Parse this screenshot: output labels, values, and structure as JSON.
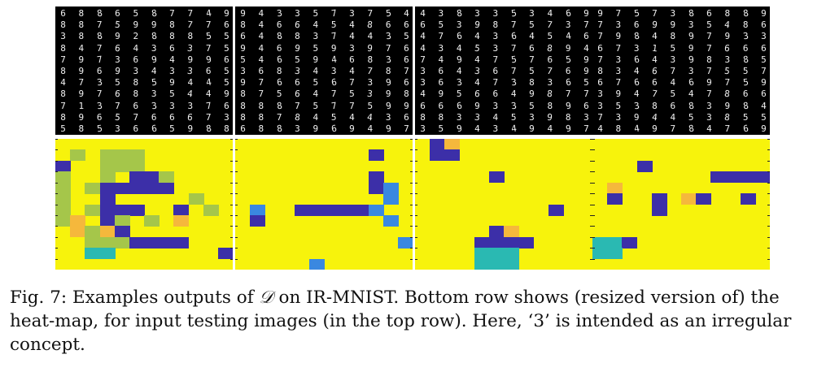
{
  "figure": {
    "panels": [
      {
        "digit_rows": [
          "6886587749",
          "8875998776",
          "3889288855",
          "8476436375",
          "7973694996",
          "8969343365",
          "4735859445",
          "8976835449",
          "7137633376",
          "8965766673",
          "5853665988"
        ],
        "heatmap": {
          "grid": [
            "YYYYYYYYYYYY",
            "YLYLLLYYYYYY",
            "DYYLLLYYYYYY",
            "LYYLYDDLYYYY",
            "LYLDDDDDYYYY",
            "LYYDYYYYYLYY",
            "LYLDDDYYDYLY",
            "LOYDLYLYOYYY",
            "YOLODYYYYYYY",
            "YYLLLDDDDYYY",
            "YYTTYYYYYYYD",
            "YYYYYYYYYYYY"
          ]
        }
      },
      {
        "digit_rows": [
          "9433573754",
          "8466454866",
          "6488374435",
          "9469593976",
          "5465946836",
          "3683434787",
          "9766567396",
          "8756475398",
          "8887577599",
          "8878454436",
          "6883969497"
        ],
        "heatmap": {
          "grid": [
            "YYYYYYYYYYYY",
            "YYYYYYYYYDYY",
            "YYYYYYYYYYYY",
            "YYYYYYYYYDYY",
            "YYYYYYYYYDBY",
            "YYYYYYYYYYBY",
            "YBYYDDDDDBYY",
            "YDYYYYYYYYBY",
            "YYYYYYYYYYYY",
            "YYYYYYYYYYYB",
            "YYYYYYYYYYYY",
            "YYYYYBYYYYYY"
          ]
        }
      },
      {
        "digit_rows": [
          "4383353469",
          "6539875737",
          "4764364546",
          "4345376894",
          "7494757659",
          "3643675769",
          "3634738365",
          "4956649877",
          "6669335896",
          "8833453983",
          "3594349497"
        ],
        "heatmap": {
          "grid": [
            "YDOYYYYYYYYY",
            "YDDYYYYYYYYY",
            "YYYYYYYYYYYY",
            "YYYYYDYYYYYY",
            "YYYYYYYYYYYY",
            "YYYYYYYYYYYY",
            "YYYYYYYYYDYY",
            "YYYYYYYYYYYY",
            "YYYYYDOYYYYY",
            "YYYYDDDDYYYY",
            "YYYYTTTYYYYY",
            "YYYYTTTYYYYY"
          ]
        }
      },
      {
        "digit_rows": [
          "9757386889",
          "7369935486",
          "7984897933",
          "6731597666",
          "7364398385",
          "8346737557",
          "6766469759",
          "3947547866",
          "3538683984",
          "7394453855",
          "4849784769"
        ],
        "heatmap": {
          "grid": [
            "YYYYYYYYYYYY",
            "YYYYYYYYYYYY",
            "YYYDYYYYYYYY",
            "YYYYYYYYDDDD",
            "YOYYYYYYYYYY",
            "YDYYDYODYYDY",
            "YYYYDYYYYYYY",
            "YYYYYYYYYYYY",
            "YYYYYYYYYYYY",
            "TTDYYYYYYYYY",
            "TTYYYYYYYYYY",
            "YYYYYYYYYYYY"
          ]
        }
      }
    ],
    "heatmap_colors": {
      "Y": "#f7f30c",
      "L": "#a5c64a",
      "D": "#3c2fa8",
      "B": "#3a88e0",
      "O": "#f5b83c",
      "T": "#2ab9b2"
    }
  },
  "caption": {
    "prefix": "Fig. 7: Examples outputs of ",
    "symbol": "𝒟",
    "suffix": " on IR-MNIST. Bottom row shows (resized version of) the heat-map, for input testing images (in the top row). Here, ‘3’ is intended as an irregular concept."
  }
}
